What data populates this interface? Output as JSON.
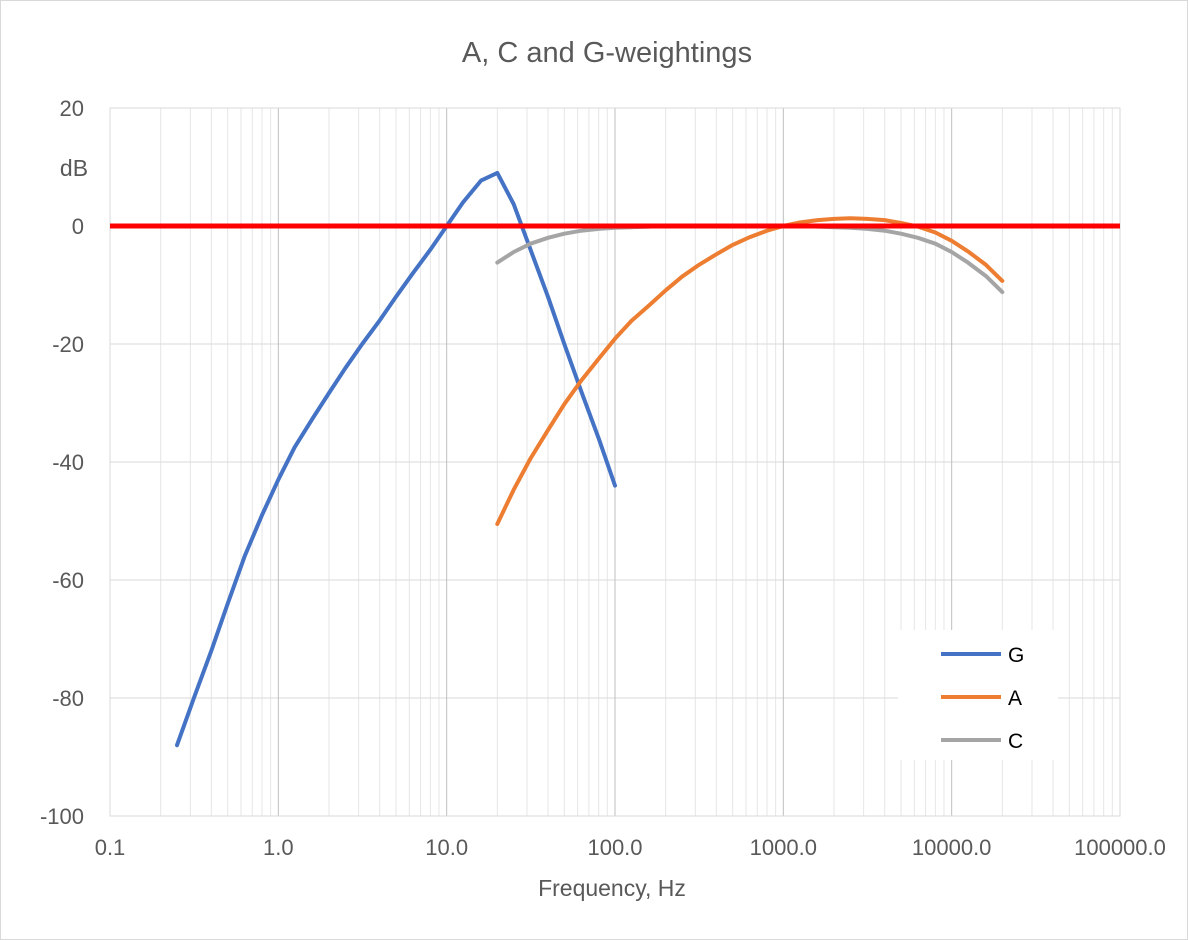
{
  "chart_data": {
    "type": "line",
    "title": "A, C and G-weightings",
    "xlabel": "Frequency, Hz",
    "ylabel": "dB",
    "x_scale": "log",
    "xlim": [
      0.1,
      100000
    ],
    "ylim": [
      -100,
      20
    ],
    "x_ticks": [
      0.1,
      1,
      10,
      100,
      1000,
      10000,
      100000
    ],
    "x_tick_labels": [
      "0.1",
      "1.0",
      "10.0",
      "100.0",
      "1000.0",
      "10000.0",
      "100000.0"
    ],
    "y_ticks": [
      20,
      0,
      -20,
      -40,
      -60,
      -80,
      -100
    ],
    "y_tick_labels": [
      "20",
      "0",
      "-20",
      "-40",
      "-60",
      "-80",
      "-100"
    ],
    "grid": true,
    "minor_x_grid": true,
    "legend_position": "bottom-right",
    "reference_line": {
      "y": 0,
      "color": "#ff0000"
    },
    "series": [
      {
        "name": "G",
        "color": "#4472c4",
        "x": [
          0.25,
          0.315,
          0.4,
          0.5,
          0.63,
          0.8,
          1,
          1.25,
          1.6,
          2,
          2.5,
          3.15,
          4,
          5,
          6.3,
          8,
          10,
          12.5,
          16,
          20,
          25,
          31.5,
          40,
          50,
          63,
          80,
          100
        ],
        "y": [
          -88,
          -80,
          -72,
          -64,
          -56,
          -49,
          -43,
          -37.5,
          -32.6,
          -28.3,
          -24.1,
          -20,
          -16,
          -12,
          -8,
          -4,
          0,
          4,
          7.7,
          9,
          3.7,
          -4,
          -12,
          -20,
          -28,
          -36,
          -44
        ]
      },
      {
        "name": "A",
        "color": "#ed7d31",
        "x": [
          20,
          25,
          31.5,
          40,
          50,
          63,
          80,
          100,
          125,
          160,
          200,
          250,
          315,
          400,
          500,
          630,
          800,
          1000,
          1250,
          1600,
          2000,
          2500,
          3150,
          4000,
          5000,
          6300,
          8000,
          10000,
          12500,
          16000,
          20000
        ],
        "y": [
          -50.5,
          -44.7,
          -39.4,
          -34.6,
          -30.2,
          -26.2,
          -22.5,
          -19.1,
          -16.1,
          -13.4,
          -10.9,
          -8.6,
          -6.6,
          -4.8,
          -3.2,
          -1.9,
          -0.8,
          0,
          0.6,
          1,
          1.2,
          1.3,
          1.2,
          1,
          0.5,
          -0.1,
          -1.1,
          -2.5,
          -4.3,
          -6.6,
          -9.3
        ]
      },
      {
        "name": "C",
        "color": "#a5a5a5",
        "x": [
          20,
          25,
          31.5,
          40,
          50,
          63,
          80,
          100,
          125,
          160,
          200,
          250,
          315,
          400,
          500,
          630,
          800,
          1000,
          1250,
          1600,
          2000,
          2500,
          3150,
          4000,
          5000,
          6300,
          8000,
          10000,
          12500,
          16000,
          20000
        ],
        "y": [
          -6.2,
          -4.4,
          -3,
          -2,
          -1.3,
          -0.8,
          -0.5,
          -0.3,
          -0.2,
          -0.1,
          0,
          0,
          0,
          0,
          0,
          0,
          0,
          0,
          0,
          -0.1,
          -0.2,
          -0.3,
          -0.5,
          -0.8,
          -1.3,
          -2,
          -3,
          -4.4,
          -6.2,
          -8.5,
          -11.2
        ]
      }
    ]
  }
}
